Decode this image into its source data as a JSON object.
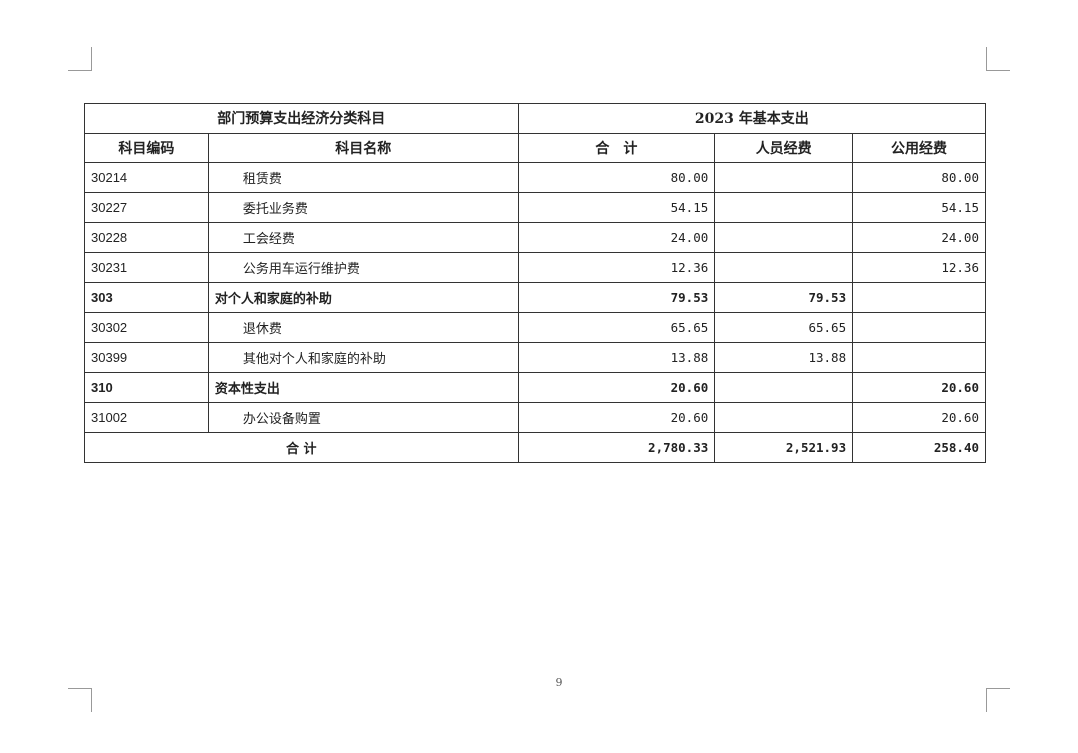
{
  "table": {
    "header_left": "部门预算支出经济分类科目",
    "header_right": "2023 年基本支出",
    "columns": [
      "科目编码",
      "科目名称",
      "合　计",
      "人员经费",
      "公用经费"
    ],
    "rows": [
      {
        "code": "30214",
        "name": "租赁费",
        "total": "80.00",
        "personnel": "",
        "public": "80.00",
        "level": "item"
      },
      {
        "code": "30227",
        "name": "委托业务费",
        "total": "54.15",
        "personnel": "",
        "public": "54.15",
        "level": "item"
      },
      {
        "code": "30228",
        "name": "工会经费",
        "total": "24.00",
        "personnel": "",
        "public": "24.00",
        "level": "item"
      },
      {
        "code": "30231",
        "name": "公务用车运行维护费",
        "total": "12.36",
        "personnel": "",
        "public": "12.36",
        "level": "item"
      },
      {
        "code": "303",
        "name": "对个人和家庭的补助",
        "total": "79.53",
        "personnel": "79.53",
        "public": "",
        "level": "group"
      },
      {
        "code": "30302",
        "name": "退休费",
        "total": "65.65",
        "personnel": "65.65",
        "public": "",
        "level": "item"
      },
      {
        "code": "30399",
        "name": "其他对个人和家庭的补助",
        "total": "13.88",
        "personnel": "13.88",
        "public": "",
        "level": "item"
      },
      {
        "code": "310",
        "name": "资本性支出",
        "total": "20.60",
        "personnel": "",
        "public": "20.60",
        "level": "group"
      },
      {
        "code": "31002",
        "name": "办公设备购置",
        "total": "20.60",
        "personnel": "",
        "public": "20.60",
        "level": "item"
      }
    ],
    "total_row": {
      "label": "合 计",
      "total": "2,780.33",
      "personnel": "2,521.93",
      "public": "258.40"
    }
  },
  "page_number": "9"
}
